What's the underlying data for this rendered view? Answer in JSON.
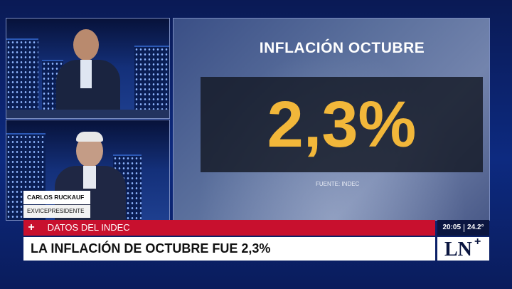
{
  "graphic": {
    "title": "INFLACIÓN OCTUBRE",
    "value": "2,3%",
    "source": "FUENTE: INDEC"
  },
  "guest": {
    "name": "CARLOS RUCKAUF",
    "role": "EXVICEPRESIDENTE"
  },
  "ticker": {
    "icon": "+",
    "section": "DATOS DEL INDEC",
    "headline": "LA INFLACIÓN DE OCTUBRE FUE 2,3%"
  },
  "status": {
    "time": "20:05",
    "temperature": "24.2°"
  },
  "logo": {
    "text": "LN",
    "plus": "+"
  }
}
